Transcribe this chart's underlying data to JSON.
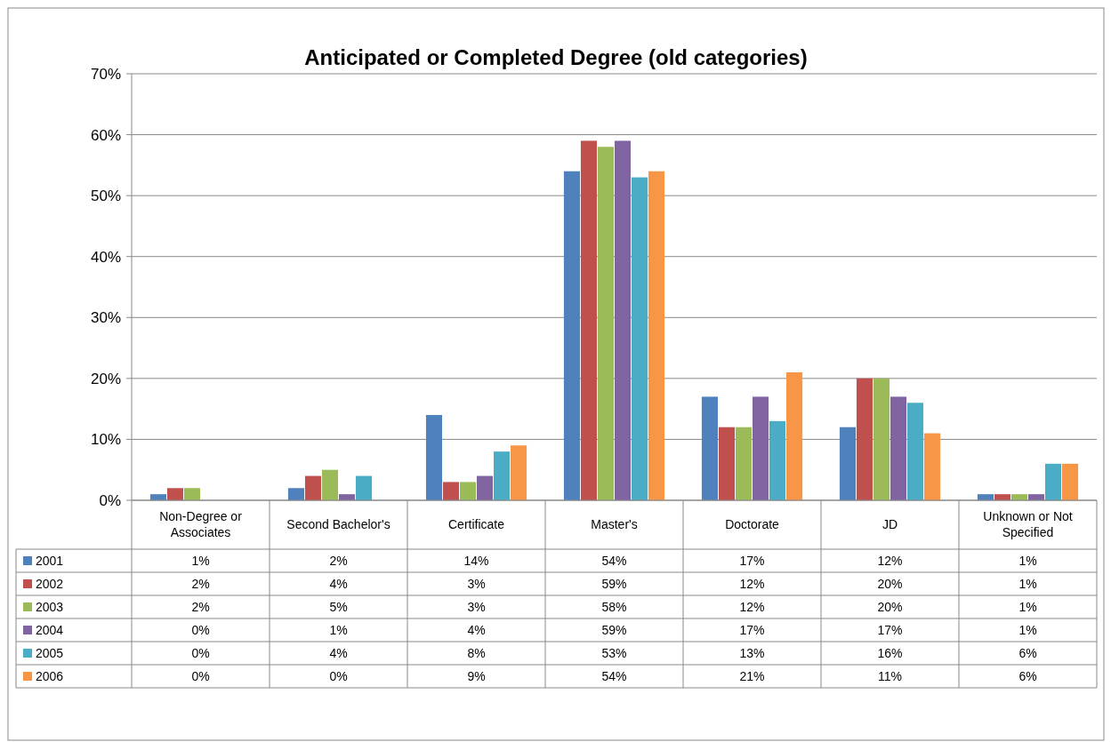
{
  "chart_data": {
    "type": "bar",
    "title": "Anticipated or Completed Degree (old categories)",
    "categories": [
      "Non-Degree or Associates",
      "Second Bachelor's",
      "Certificate",
      "Master's",
      "Doctorate",
      "JD",
      "Unknown or Not Specified"
    ],
    "series": [
      {
        "name": "2001",
        "color": "#4f81bd",
        "values": [
          1,
          2,
          14,
          54,
          17,
          12,
          1
        ],
        "value_labels": [
          "1%",
          "2%",
          "14%",
          "54%",
          "17%",
          "12%",
          "1%"
        ]
      },
      {
        "name": "2002",
        "color": "#c0504d",
        "values": [
          2,
          4,
          3,
          59,
          12,
          20,
          1
        ],
        "value_labels": [
          "2%",
          "4%",
          "3%",
          "59%",
          "12%",
          "20%",
          "1%"
        ]
      },
      {
        "name": "2003",
        "color": "#9bbb59",
        "values": [
          2,
          5,
          3,
          58,
          12,
          20,
          1
        ],
        "value_labels": [
          "2%",
          "5%",
          "3%",
          "58%",
          "12%",
          "20%",
          "1%"
        ]
      },
      {
        "name": "2004",
        "color": "#8064a2",
        "values": [
          0,
          1,
          4,
          59,
          17,
          17,
          1
        ],
        "value_labels": [
          "0%",
          "1%",
          "4%",
          "59%",
          "17%",
          "17%",
          "1%"
        ]
      },
      {
        "name": "2005",
        "color": "#4bacc6",
        "values": [
          0,
          4,
          8,
          53,
          13,
          16,
          6
        ],
        "value_labels": [
          "0%",
          "4%",
          "8%",
          "53%",
          "13%",
          "16%",
          "6%"
        ]
      },
      {
        "name": "2006",
        "color": "#f79646",
        "values": [
          0,
          0,
          9,
          54,
          21,
          11,
          6
        ],
        "value_labels": [
          "0%",
          "0%",
          "9%",
          "54%",
          "21%",
          "11%",
          "6%"
        ]
      }
    ],
    "ylim": [
      0,
      70
    ],
    "yticks": [
      {
        "value": 0,
        "label": "0%"
      },
      {
        "value": 10,
        "label": "10%"
      },
      {
        "value": 20,
        "label": "20%"
      },
      {
        "value": 30,
        "label": "30%"
      },
      {
        "value": 40,
        "label": "40%"
      },
      {
        "value": 50,
        "label": "50%"
      },
      {
        "value": 60,
        "label": "60%"
      },
      {
        "value": 70,
        "label": "70%"
      }
    ],
    "grid": "y",
    "legend": "bottom"
  }
}
